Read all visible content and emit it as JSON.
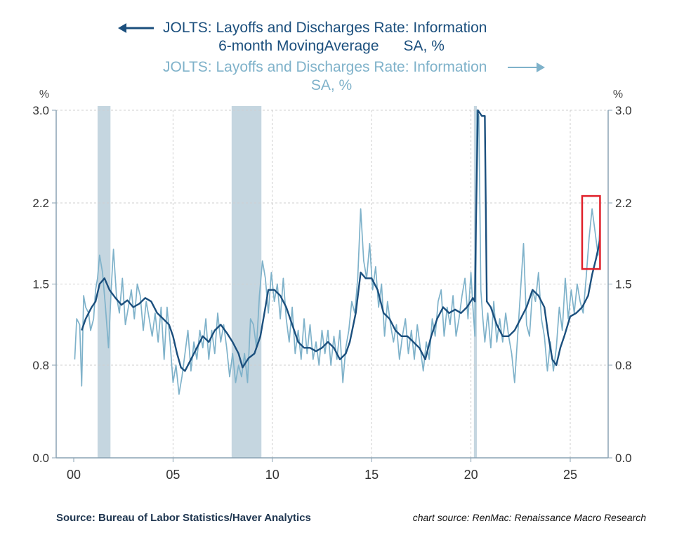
{
  "chart_data": {
    "type": "line",
    "title_left": [
      "JOLTS: Layoffs and Discharges Rate: Information",
      "6-month MovingAverage      SA, %"
    ],
    "title_right": [
      "JOLTS: Layoffs and Discharges Rate: Information",
      "SA, %"
    ],
    "left_unit": "%",
    "right_unit": "%",
    "ylim": [
      0,
      3.0
    ],
    "yticks": [
      0.0,
      0.8,
      1.5,
      2.2,
      3.0
    ],
    "ytick_labels": [
      "0.0",
      "0.8",
      "1.5",
      "2.2",
      "3.0"
    ],
    "xlim": [
      2000,
      2027.3
    ],
    "xticks": [
      2000,
      2005,
      2010,
      2015,
      2020,
      2025
    ],
    "xtick_labels": [
      "00",
      "05",
      "10",
      "15",
      "20",
      "25"
    ],
    "grid": true,
    "recessions": [
      [
        2001.2,
        2001.85
      ],
      [
        2007.95,
        2009.45
      ],
      [
        2020.15,
        2020.3
      ]
    ],
    "highlight_box": {
      "x": [
        2025.6,
        2026.5
      ],
      "y": [
        1.63,
        2.26
      ],
      "color": "#e0202a"
    },
    "series": [
      {
        "name": "6-month Moving Average (left)",
        "color": "#1b4f7d",
        "points": [
          [
            2000.4,
            1.1
          ],
          [
            2000.6,
            1.2
          ],
          [
            2000.9,
            1.3
          ],
          [
            2001.1,
            1.35
          ],
          [
            2001.3,
            1.5
          ],
          [
            2001.55,
            1.55
          ],
          [
            2001.8,
            1.45
          ],
          [
            2002.1,
            1.38
          ],
          [
            2002.4,
            1.32
          ],
          [
            2002.7,
            1.36
          ],
          [
            2003.0,
            1.3
          ],
          [
            2003.3,
            1.33
          ],
          [
            2003.6,
            1.38
          ],
          [
            2003.9,
            1.35
          ],
          [
            2004.2,
            1.25
          ],
          [
            2004.5,
            1.2
          ],
          [
            2004.8,
            1.15
          ],
          [
            2005.0,
            1.05
          ],
          [
            2005.2,
            0.9
          ],
          [
            2005.4,
            0.78
          ],
          [
            2005.6,
            0.75
          ],
          [
            2005.9,
            0.85
          ],
          [
            2006.2,
            0.95
          ],
          [
            2006.5,
            1.05
          ],
          [
            2006.8,
            1.0
          ],
          [
            2007.1,
            1.1
          ],
          [
            2007.4,
            1.15
          ],
          [
            2007.7,
            1.08
          ],
          [
            2008.0,
            1.0
          ],
          [
            2008.3,
            0.9
          ],
          [
            2008.5,
            0.78
          ],
          [
            2008.8,
            0.86
          ],
          [
            2009.1,
            0.9
          ],
          [
            2009.4,
            1.05
          ],
          [
            2009.6,
            1.25
          ],
          [
            2009.8,
            1.45
          ],
          [
            2010.1,
            1.45
          ],
          [
            2010.4,
            1.4
          ],
          [
            2010.7,
            1.3
          ],
          [
            2011.0,
            1.15
          ],
          [
            2011.3,
            1.0
          ],
          [
            2011.6,
            0.95
          ],
          [
            2011.9,
            0.95
          ],
          [
            2012.2,
            0.92
          ],
          [
            2012.5,
            0.95
          ],
          [
            2012.8,
            1.0
          ],
          [
            2013.1,
            0.95
          ],
          [
            2013.4,
            0.85
          ],
          [
            2013.7,
            0.9
          ],
          [
            2013.9,
            1.0
          ],
          [
            2014.2,
            1.25
          ],
          [
            2014.45,
            1.6
          ],
          [
            2014.7,
            1.55
          ],
          [
            2015.0,
            1.55
          ],
          [
            2015.3,
            1.45
          ],
          [
            2015.6,
            1.25
          ],
          [
            2015.9,
            1.2
          ],
          [
            2016.2,
            1.1
          ],
          [
            2016.5,
            1.05
          ],
          [
            2016.8,
            1.05
          ],
          [
            2017.1,
            1.0
          ],
          [
            2017.4,
            0.95
          ],
          [
            2017.7,
            0.85
          ],
          [
            2018.0,
            1.05
          ],
          [
            2018.3,
            1.2
          ],
          [
            2018.6,
            1.3
          ],
          [
            2018.9,
            1.25
          ],
          [
            2019.2,
            1.28
          ],
          [
            2019.5,
            1.25
          ],
          [
            2019.8,
            1.3
          ],
          [
            2020.1,
            1.38
          ],
          [
            2020.2,
            1.35
          ],
          [
            2020.25,
            2.0
          ],
          [
            2020.35,
            3.0
          ],
          [
            2020.55,
            2.95
          ],
          [
            2020.7,
            2.95
          ],
          [
            2020.8,
            1.35
          ],
          [
            2021.0,
            1.3
          ],
          [
            2021.3,
            1.15
          ],
          [
            2021.6,
            1.05
          ],
          [
            2021.9,
            1.05
          ],
          [
            2022.2,
            1.1
          ],
          [
            2022.5,
            1.2
          ],
          [
            2022.8,
            1.3
          ],
          [
            2023.1,
            1.45
          ],
          [
            2023.4,
            1.4
          ],
          [
            2023.7,
            1.3
          ],
          [
            2023.9,
            1.05
          ],
          [
            2024.1,
            0.85
          ],
          [
            2024.3,
            0.8
          ],
          [
            2024.5,
            0.95
          ],
          [
            2024.7,
            1.05
          ],
          [
            2025.0,
            1.22
          ],
          [
            2025.3,
            1.25
          ],
          [
            2025.6,
            1.3
          ],
          [
            2025.9,
            1.4
          ],
          [
            2026.1,
            1.58
          ],
          [
            2026.3,
            1.72
          ],
          [
            2026.5,
            1.88
          ]
        ]
      },
      {
        "name": "Monthly SA (right)",
        "color": "#7fb2ca",
        "points": [
          [
            2000.05,
            0.85
          ],
          [
            2000.15,
            1.2
          ],
          [
            2000.3,
            1.15
          ],
          [
            2000.4,
            0.62
          ],
          [
            2000.5,
            1.4
          ],
          [
            2000.6,
            1.3
          ],
          [
            2000.75,
            1.25
          ],
          [
            2000.85,
            1.1
          ],
          [
            2001.0,
            1.2
          ],
          [
            2001.1,
            1.45
          ],
          [
            2001.2,
            1.55
          ],
          [
            2001.3,
            1.75
          ],
          [
            2001.45,
            1.6
          ],
          [
            2001.6,
            1.3
          ],
          [
            2001.75,
            0.95
          ],
          [
            2001.9,
            1.5
          ],
          [
            2002.0,
            1.8
          ],
          [
            2002.15,
            1.4
          ],
          [
            2002.3,
            1.25
          ],
          [
            2002.45,
            1.55
          ],
          [
            2002.6,
            1.15
          ],
          [
            2002.75,
            1.3
          ],
          [
            2002.9,
            1.45
          ],
          [
            2003.05,
            1.2
          ],
          [
            2003.2,
            1.5
          ],
          [
            2003.35,
            1.4
          ],
          [
            2003.5,
            1.1
          ],
          [
            2003.65,
            1.35
          ],
          [
            2003.8,
            1.2
          ],
          [
            2003.95,
            1.05
          ],
          [
            2004.1,
            1.25
          ],
          [
            2004.25,
            1.0
          ],
          [
            2004.4,
            1.3
          ],
          [
            2004.55,
            0.85
          ],
          [
            2004.7,
            1.3
          ],
          [
            2004.85,
            1.0
          ],
          [
            2005.0,
            0.65
          ],
          [
            2005.15,
            0.8
          ],
          [
            2005.3,
            0.55
          ],
          [
            2005.45,
            0.7
          ],
          [
            2005.6,
            0.9
          ],
          [
            2005.75,
            1.1
          ],
          [
            2005.9,
            0.75
          ],
          [
            2006.05,
            1.0
          ],
          [
            2006.2,
            0.85
          ],
          [
            2006.35,
            1.1
          ],
          [
            2006.5,
            0.95
          ],
          [
            2006.65,
            1.2
          ],
          [
            2006.8,
            0.85
          ],
          [
            2006.95,
            1.1
          ],
          [
            2007.1,
            0.9
          ],
          [
            2007.25,
            1.25
          ],
          [
            2007.4,
            1.0
          ],
          [
            2007.55,
            1.15
          ],
          [
            2007.7,
            0.95
          ],
          [
            2007.85,
            0.7
          ],
          [
            2008.0,
            0.9
          ],
          [
            2008.15,
            0.65
          ],
          [
            2008.3,
            0.8
          ],
          [
            2008.45,
            0.7
          ],
          [
            2008.6,
            0.9
          ],
          [
            2008.75,
            0.65
          ],
          [
            2008.9,
            1.2
          ],
          [
            2009.05,
            1.15
          ],
          [
            2009.2,
            0.95
          ],
          [
            2009.35,
            1.4
          ],
          [
            2009.5,
            1.7
          ],
          [
            2009.65,
            1.55
          ],
          [
            2009.8,
            1.25
          ],
          [
            2009.95,
            1.6
          ],
          [
            2010.1,
            1.35
          ],
          [
            2010.25,
            1.5
          ],
          [
            2010.4,
            1.2
          ],
          [
            2010.55,
            1.55
          ],
          [
            2010.7,
            1.2
          ],
          [
            2010.85,
            1.0
          ],
          [
            2011.0,
            1.3
          ],
          [
            2011.15,
            0.9
          ],
          [
            2011.3,
            1.1
          ],
          [
            2011.45,
            0.85
          ],
          [
            2011.6,
            1.2
          ],
          [
            2011.75,
            0.9
          ],
          [
            2011.9,
            1.15
          ],
          [
            2012.05,
            0.85
          ],
          [
            2012.2,
            1.0
          ],
          [
            2012.35,
            0.8
          ],
          [
            2012.5,
            1.1
          ],
          [
            2012.65,
            0.9
          ],
          [
            2012.8,
            1.1
          ],
          [
            2012.95,
            0.8
          ],
          [
            2013.1,
            1.05
          ],
          [
            2013.25,
            0.85
          ],
          [
            2013.4,
            1.1
          ],
          [
            2013.55,
            0.65
          ],
          [
            2013.7,
            0.95
          ],
          [
            2013.85,
            1.1
          ],
          [
            2014.0,
            1.35
          ],
          [
            2014.15,
            1.25
          ],
          [
            2014.3,
            1.55
          ],
          [
            2014.45,
            2.15
          ],
          [
            2014.6,
            1.7
          ],
          [
            2014.75,
            1.55
          ],
          [
            2014.9,
            1.85
          ],
          [
            2015.05,
            1.45
          ],
          [
            2015.2,
            1.65
          ],
          [
            2015.35,
            1.3
          ],
          [
            2015.5,
            1.5
          ],
          [
            2015.65,
            1.05
          ],
          [
            2015.8,
            1.35
          ],
          [
            2015.95,
            1.15
          ],
          [
            2016.1,
            1.0
          ],
          [
            2016.25,
            1.15
          ],
          [
            2016.4,
            0.85
          ],
          [
            2016.55,
            1.05
          ],
          [
            2016.7,
            1.2
          ],
          [
            2016.85,
            0.9
          ],
          [
            2017.0,
            1.1
          ],
          [
            2017.15,
            0.85
          ],
          [
            2017.3,
            1.15
          ],
          [
            2017.45,
            0.95
          ],
          [
            2017.6,
            0.75
          ],
          [
            2017.75,
            1.0
          ],
          [
            2017.9,
            0.85
          ],
          [
            2018.05,
            1.2
          ],
          [
            2018.2,
            1.05
          ],
          [
            2018.35,
            1.35
          ],
          [
            2018.5,
            1.45
          ],
          [
            2018.65,
            1.05
          ],
          [
            2018.8,
            1.3
          ],
          [
            2018.95,
            1.15
          ],
          [
            2019.1,
            1.4
          ],
          [
            2019.25,
            1.05
          ],
          [
            2019.4,
            1.2
          ],
          [
            2019.55,
            1.4
          ],
          [
            2019.7,
            1.55
          ],
          [
            2019.85,
            1.2
          ],
          [
            2020.0,
            1.6
          ],
          [
            2020.1,
            1.3
          ],
          [
            2020.2,
            1.05
          ],
          [
            2020.3,
            3.0
          ],
          [
            2020.4,
            2.95
          ],
          [
            2020.5,
            1.45
          ],
          [
            2020.6,
            1.2
          ],
          [
            2020.7,
            1.0
          ],
          [
            2020.85,
            1.25
          ],
          [
            2021.0,
            0.95
          ],
          [
            2021.15,
            1.35
          ],
          [
            2021.3,
            1.0
          ],
          [
            2021.45,
            1.2
          ],
          [
            2021.6,
            1.0
          ],
          [
            2021.75,
            1.25
          ],
          [
            2021.9,
            1.05
          ],
          [
            2022.05,
            0.9
          ],
          [
            2022.2,
            0.65
          ],
          [
            2022.35,
            1.05
          ],
          [
            2022.5,
            1.45
          ],
          [
            2022.65,
            1.85
          ],
          [
            2022.8,
            1.15
          ],
          [
            2022.95,
            1.05
          ],
          [
            2023.1,
            1.45
          ],
          [
            2023.25,
            1.35
          ],
          [
            2023.4,
            1.6
          ],
          [
            2023.55,
            1.2
          ],
          [
            2023.7,
            1.05
          ],
          [
            2023.85,
            0.75
          ],
          [
            2024.0,
            1.0
          ],
          [
            2024.15,
            0.75
          ],
          [
            2024.3,
            0.95
          ],
          [
            2024.45,
            1.3
          ],
          [
            2024.6,
            1.1
          ],
          [
            2024.75,
            1.55
          ],
          [
            2024.9,
            1.2
          ],
          [
            2025.05,
            1.45
          ],
          [
            2025.2,
            1.25
          ],
          [
            2025.35,
            1.5
          ],
          [
            2025.5,
            1.35
          ],
          [
            2025.65,
            1.25
          ],
          [
            2025.8,
            1.55
          ],
          [
            2025.95,
            1.9
          ],
          [
            2026.1,
            2.15
          ],
          [
            2026.25,
            1.95
          ],
          [
            2026.4,
            1.75
          ],
          [
            2026.5,
            2.0
          ]
        ]
      }
    ],
    "source": "Source:  Bureau of Labor Statistics/Haver Analytics",
    "credit": "chart source: RenMac: Renaissance Macro Research"
  }
}
